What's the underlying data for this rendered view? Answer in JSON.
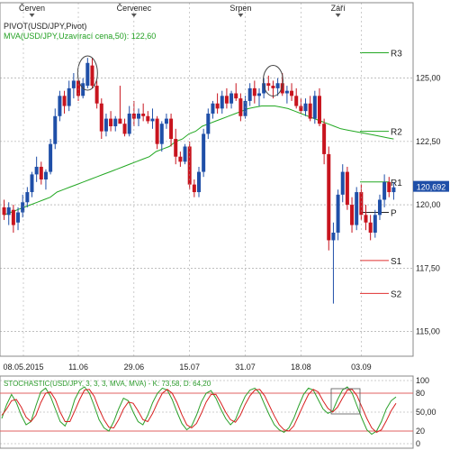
{
  "colors": {
    "bull": "#1f4fa8",
    "bear": "#c8141e",
    "mva": "#22a822",
    "pivot_res": "#22a822",
    "pivot_sup": "#e03030",
    "pivot_p": "#222222",
    "grid": "#999999",
    "stoch_k": "#2aa02a",
    "stoch_d": "#d82020",
    "level_line": "#e06060",
    "last_price_box": "#1f4fa8"
  },
  "chart_data": [
    {
      "type": "candlestick",
      "title": "PIVOT(USD/JPY,Pivot)",
      "subtitle": "MVA(USD/JPY,Uzavírací cena,50): 122,60",
      "top_month_labels": [
        "Červen",
        "Červenec",
        "Srpen",
        "Září"
      ],
      "x_tick_labels": [
        "08.05.2015",
        "11.06",
        "29.06",
        "15.07",
        "31.07",
        "18.08",
        "03.09"
      ],
      "ylim": [
        114.2,
        127.8
      ],
      "y_ticks": [
        "115,00",
        "117,50",
        "120,00",
        "122,50",
        "125,00"
      ],
      "y_tick_values": [
        115.0,
        117.5,
        120.0,
        122.5,
        125.0
      ],
      "grid": true,
      "last_price": {
        "label": "120,692",
        "value": 120.692
      },
      "pivot_levels": [
        {
          "name": "R3",
          "value": 126.0
        },
        {
          "name": "R2",
          "value": 122.9
        },
        {
          "name": "R1",
          "value": 120.9
        },
        {
          "name": "P",
          "value": 119.7
        },
        {
          "name": "S1",
          "value": 117.8
        },
        {
          "name": "S2",
          "value": 116.5
        }
      ],
      "candles_ohlc": [
        [
          119.9,
          120.2,
          119.4,
          119.6
        ],
        [
          119.6,
          120.1,
          119.2,
          119.9
        ],
        [
          119.8,
          120.0,
          118.9,
          119.2
        ],
        [
          119.3,
          119.9,
          119.0,
          119.7
        ],
        [
          119.7,
          120.4,
          119.5,
          120.1
        ],
        [
          120.1,
          120.7,
          119.9,
          120.5
        ],
        [
          120.5,
          121.3,
          120.3,
          121.2
        ],
        [
          121.2,
          121.9,
          120.9,
          121.5
        ],
        [
          121.5,
          121.7,
          120.8,
          121.0
        ],
        [
          121.0,
          121.4,
          120.6,
          121.3
        ],
        [
          121.3,
          122.6,
          121.2,
          122.4
        ],
        [
          122.4,
          123.8,
          122.2,
          123.5
        ],
        [
          123.5,
          124.5,
          123.3,
          124.3
        ],
        [
          124.3,
          124.5,
          123.6,
          123.9
        ],
        [
          123.9,
          124.9,
          123.7,
          124.6
        ],
        [
          124.6,
          125.2,
          124.2,
          124.9
        ],
        [
          124.9,
          125.0,
          124.1,
          124.3
        ],
        [
          124.3,
          125.0,
          124.2,
          124.8
        ],
        [
          124.7,
          125.8,
          124.6,
          125.6
        ],
        [
          125.5,
          125.8,
          124.6,
          124.7
        ],
        [
          124.7,
          124.9,
          123.8,
          124.0
        ],
        [
          124.0,
          124.2,
          122.6,
          122.9
        ],
        [
          122.9,
          123.6,
          122.7,
          123.4
        ],
        [
          123.4,
          123.7,
          122.9,
          123.1
        ],
        [
          123.1,
          123.5,
          122.9,
          123.4
        ],
        [
          123.4,
          124.7,
          123.3,
          123.2
        ],
        [
          123.2,
          123.4,
          122.7,
          122.8
        ],
        [
          122.8,
          123.9,
          122.7,
          123.6
        ],
        [
          123.6,
          124.1,
          123.1,
          123.4
        ],
        [
          123.4,
          123.8,
          123.1,
          123.6
        ],
        [
          123.6,
          124.0,
          123.3,
          123.5
        ],
        [
          123.5,
          123.7,
          123.2,
          123.3
        ],
        [
          123.3,
          123.8,
          123.0,
          123.4
        ],
        [
          123.4,
          123.5,
          122.2,
          122.4
        ],
        [
          122.4,
          123.3,
          122.1,
          123.2
        ],
        [
          123.2,
          123.6,
          123.0,
          123.4
        ],
        [
          123.4,
          123.6,
          122.3,
          122.6
        ],
        [
          122.6,
          123.0,
          121.6,
          121.9
        ],
        [
          121.9,
          122.1,
          121.5,
          121.7
        ],
        [
          121.7,
          122.4,
          121.6,
          122.3
        ],
        [
          122.3,
          122.5,
          120.6,
          120.8
        ],
        [
          120.8,
          121.0,
          120.3,
          120.5
        ],
        [
          120.5,
          121.5,
          120.3,
          121.3
        ],
        [
          121.3,
          123.0,
          121.1,
          122.8
        ],
        [
          122.8,
          123.8,
          122.6,
          123.6
        ],
        [
          123.6,
          124.1,
          123.4,
          124.0
        ],
        [
          124.0,
          124.4,
          123.6,
          123.8
        ],
        [
          123.8,
          124.5,
          123.6,
          124.3
        ],
        [
          124.3,
          124.6,
          123.8,
          124.0
        ],
        [
          124.0,
          124.5,
          123.8,
          124.4
        ],
        [
          124.4,
          124.8,
          124.1,
          124.2
        ],
        [
          124.2,
          124.4,
          123.3,
          123.5
        ],
        [
          123.5,
          124.3,
          123.4,
          124.1
        ],
        [
          124.1,
          124.8,
          123.9,
          124.6
        ],
        [
          124.6,
          124.9,
          124.0,
          124.3
        ],
        [
          124.3,
          124.6,
          123.9,
          124.4
        ],
        [
          124.4,
          125.0,
          124.2,
          124.8
        ],
        [
          124.8,
          125.1,
          124.5,
          124.7
        ],
        [
          124.7,
          124.9,
          124.2,
          124.6
        ],
        [
          124.6,
          125.0,
          124.3,
          124.8
        ],
        [
          124.8,
          125.2,
          124.3,
          124.4
        ],
        [
          124.4,
          124.7,
          124.0,
          124.5
        ],
        [
          124.5,
          124.8,
          124.1,
          124.3
        ],
        [
          124.3,
          124.6,
          123.8,
          123.9
        ],
        [
          123.9,
          124.2,
          123.6,
          123.7
        ],
        [
          123.7,
          124.2,
          123.5,
          124.0
        ],
        [
          124.0,
          124.3,
          123.3,
          123.4
        ],
        [
          123.4,
          124.5,
          123.2,
          124.3
        ],
        [
          124.3,
          124.6,
          123.1,
          123.2
        ],
        [
          123.2,
          123.4,
          121.6,
          122.0
        ],
        [
          122.0,
          122.3,
          118.2,
          118.6
        ],
        [
          118.6,
          119.3,
          116.1,
          118.9
        ],
        [
          118.9,
          120.6,
          118.6,
          120.4
        ],
        [
          120.4,
          121.6,
          120.1,
          121.3
        ],
        [
          121.3,
          121.5,
          119.8,
          120.0
        ],
        [
          120.0,
          120.3,
          118.9,
          119.2
        ],
        [
          119.2,
          120.7,
          119.0,
          120.5
        ],
        [
          120.5,
          120.8,
          119.4,
          119.6
        ],
        [
          119.6,
          120.0,
          119.0,
          119.3
        ],
        [
          119.3,
          119.6,
          118.6,
          118.9
        ],
        [
          118.9,
          119.8,
          118.7,
          119.6
        ],
        [
          119.6,
          120.4,
          119.4,
          120.2
        ],
        [
          120.2,
          121.2,
          119.9,
          120.9
        ],
        [
          120.9,
          121.1,
          120.3,
          120.5
        ],
        [
          120.5,
          120.9,
          120.2,
          120.69
        ]
      ],
      "mva_50": [
        119.6,
        119.7,
        119.8,
        119.9,
        120.0,
        120.1,
        120.2,
        120.3,
        120.5,
        120.6,
        120.7,
        120.8,
        120.9,
        121.0,
        121.1,
        121.2,
        121.3,
        121.4,
        121.5,
        121.6,
        121.7,
        121.8,
        121.9,
        122.1,
        122.2,
        122.3,
        122.5,
        122.6,
        122.8,
        122.9,
        123.1,
        123.2,
        123.3,
        123.4,
        123.5,
        123.6,
        123.7,
        123.8,
        123.85,
        123.9,
        123.9,
        123.9,
        123.85,
        123.8,
        123.7,
        123.6,
        123.5,
        123.4,
        123.3,
        123.2,
        123.1,
        123.0,
        122.95,
        122.9,
        122.85,
        122.8,
        122.75,
        122.7,
        122.65,
        122.6
      ]
    },
    {
      "type": "line",
      "title": "STOCHASTIC(USD/JPY, 3, 3, 3, MVA, MVA) - K: 73,58, D: 64,20",
      "ylim": [
        0,
        100
      ],
      "y_ticks": [
        "100",
        "80",
        "50,00",
        "20",
        "0"
      ],
      "y_tick_values": [
        100,
        80,
        50,
        20,
        0
      ],
      "levels": [
        80,
        20
      ],
      "series": [
        {
          "name": "K",
          "values": [
            40,
            62,
            78,
            65,
            45,
            30,
            35,
            60,
            82,
            88,
            75,
            55,
            35,
            28,
            45,
            70,
            85,
            90,
            80,
            60,
            38,
            25,
            20,
            35,
            55,
            72,
            68,
            50,
            35,
            30,
            45,
            65,
            80,
            88,
            85,
            70,
            50,
            32,
            22,
            28,
            45,
            66,
            80,
            84,
            72,
            55,
            40,
            30,
            38,
            58,
            75,
            85,
            88,
            80,
            62,
            45,
            30,
            22,
            18,
            25,
            40,
            60,
            78,
            88,
            85,
            70,
            55,
            48,
            52,
            70,
            85,
            90,
            80,
            60,
            40,
            22,
            15,
            20,
            35,
            55,
            68,
            74
          ]
        },
        {
          "name": "D",
          "values": [
            45,
            55,
            68,
            70,
            58,
            42,
            35,
            45,
            65,
            80,
            82,
            70,
            50,
            35,
            35,
            52,
            70,
            85,
            86,
            75,
            55,
            38,
            26,
            25,
            38,
            55,
            66,
            64,
            52,
            38,
            35,
            48,
            65,
            80,
            86,
            80,
            65,
            46,
            30,
            25,
            32,
            48,
            66,
            78,
            78,
            65,
            50,
            38,
            34,
            45,
            62,
            76,
            85,
            86,
            76,
            60,
            44,
            30,
            22,
            20,
            28,
            45,
            62,
            78,
            86,
            82,
            68,
            56,
            50,
            58,
            72,
            85,
            86,
            76,
            58,
            40,
            25,
            18,
            22,
            36,
            52,
            64
          ]
        }
      ]
    }
  ]
}
